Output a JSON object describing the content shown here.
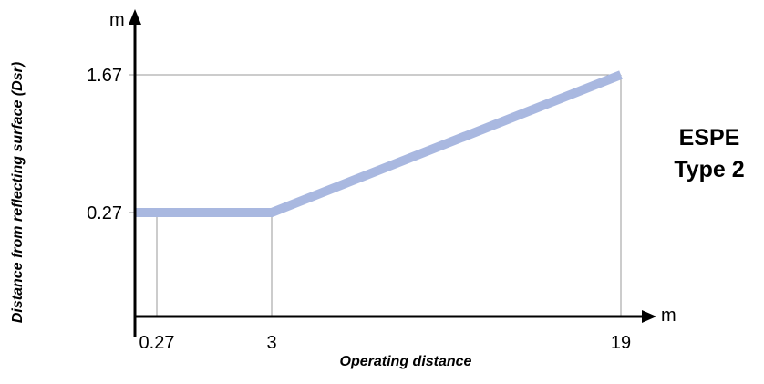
{
  "chart_data": {
    "type": "line",
    "ylabel": "Distance from reflecting surface (Dsr)",
    "xlabel": "Operating distance",
    "x_unit": "m",
    "y_unit": "m",
    "x_ticks": [
      "0.27",
      "3",
      "19"
    ],
    "y_ticks": [
      "0.27",
      "1.67"
    ],
    "series": [
      {
        "points": [
          [
            0,
            0.27
          ],
          [
            0.27,
            0.27
          ],
          [
            3,
            0.27
          ],
          [
            19,
            1.67
          ]
        ],
        "color": "#a9b8e0"
      }
    ],
    "annotation": [
      "ESPE",
      "Type 2"
    ],
    "colors": {
      "line": "#a9b8e0",
      "axis": "#000000",
      "guide": "#9a9a9a"
    }
  }
}
